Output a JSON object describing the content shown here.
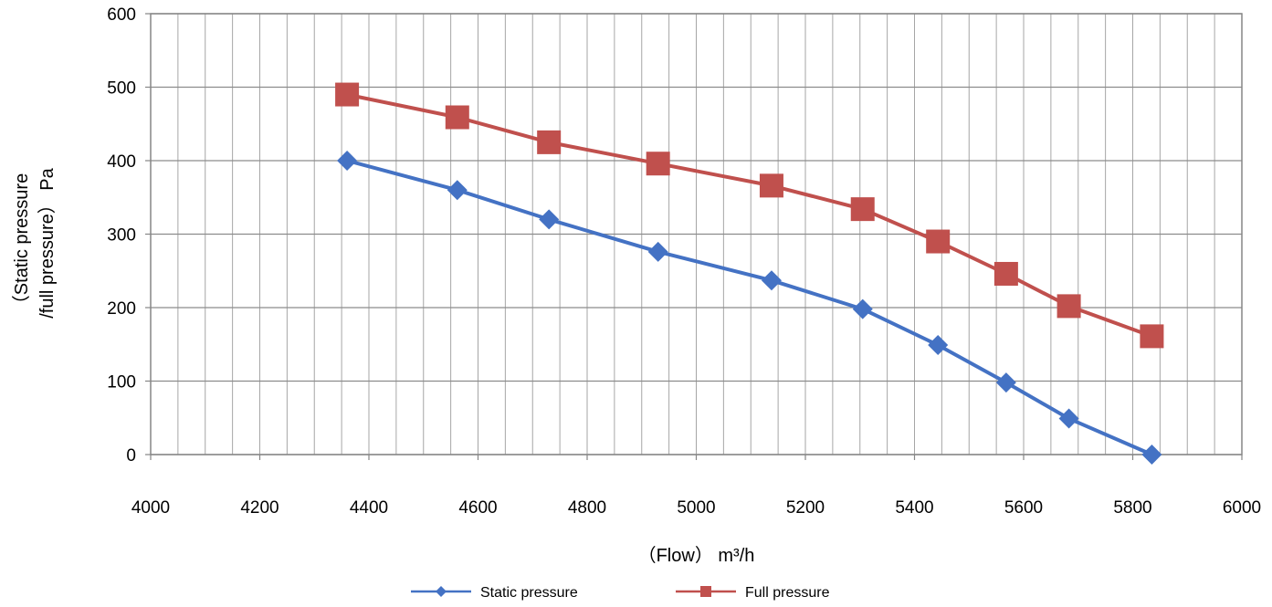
{
  "chart_data": {
    "type": "line",
    "xlabel": "（Flow） m³/h",
    "ylabel_line1": "（Static pressure",
    "ylabel_line2": "/full pressure） Pa",
    "xlim": [
      4000,
      6000
    ],
    "ylim": [
      0,
      600
    ],
    "x_major_step": 200,
    "x_minor_step": 50,
    "y_major_step": 100,
    "grid": true,
    "legend_position": "bottom",
    "series": [
      {
        "name": "Static pressure",
        "color": "#4472C4",
        "marker": "diamond",
        "points": [
          {
            "x": 4360,
            "y": 400
          },
          {
            "x": 4562,
            "y": 360
          },
          {
            "x": 4730,
            "y": 320
          },
          {
            "x": 4930,
            "y": 276
          },
          {
            "x": 5138,
            "y": 237
          },
          {
            "x": 5305,
            "y": 198
          },
          {
            "x": 5443,
            "y": 149
          },
          {
            "x": 5568,
            "y": 98
          },
          {
            "x": 5683,
            "y": 49
          },
          {
            "x": 5835,
            "y": 0
          }
        ]
      },
      {
        "name": "Full pressure",
        "color": "#C0504D",
        "marker": "square",
        "points": [
          {
            "x": 4360,
            "y": 490
          },
          {
            "x": 4562,
            "y": 459
          },
          {
            "x": 4730,
            "y": 425
          },
          {
            "x": 4930,
            "y": 396
          },
          {
            "x": 5138,
            "y": 366
          },
          {
            "x": 5305,
            "y": 334
          },
          {
            "x": 5443,
            "y": 290
          },
          {
            "x": 5568,
            "y": 246
          },
          {
            "x": 5683,
            "y": 202
          },
          {
            "x": 5835,
            "y": 161
          }
        ]
      }
    ]
  }
}
